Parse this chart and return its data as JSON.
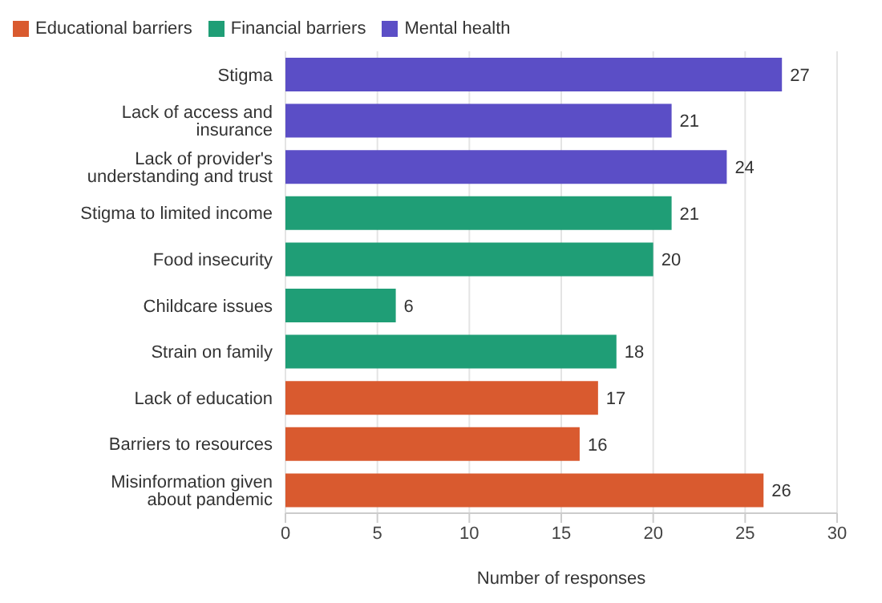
{
  "chart_data": {
    "type": "bar",
    "orientation": "horizontal",
    "stacked": true,
    "xlabel": "Number of responses",
    "categories": [
      "Stigma",
      "Lack of access and insurance",
      "Lack of provider's understanding and trust",
      "Stigma to limited income",
      "Food insecurity",
      "Childcare issues",
      "Strain on family",
      "Lack of education",
      "Barriers to resources",
      "Misinformation given about pandemic"
    ],
    "series": [
      {
        "name": "Mental health",
        "color": "#5b4ec6",
        "values": [
          27,
          21,
          24,
          null,
          null,
          null,
          null,
          null,
          null,
          null
        ]
      },
      {
        "name": "Financial barriers",
        "color": "#1f9e76",
        "values": [
          null,
          null,
          null,
          21,
          20,
          6,
          18,
          null,
          null,
          null
        ]
      },
      {
        "name": "Educational barriers",
        "color": "#d95a2f",
        "values": [
          null,
          null,
          null,
          null,
          null,
          null,
          null,
          17,
          16,
          26
        ]
      }
    ],
    "xlim": [
      0,
      30
    ],
    "xticks": [
      0,
      5,
      10,
      15,
      20,
      25,
      30
    ],
    "grid": "x",
    "legend": "top left",
    "data_labels": true
  }
}
